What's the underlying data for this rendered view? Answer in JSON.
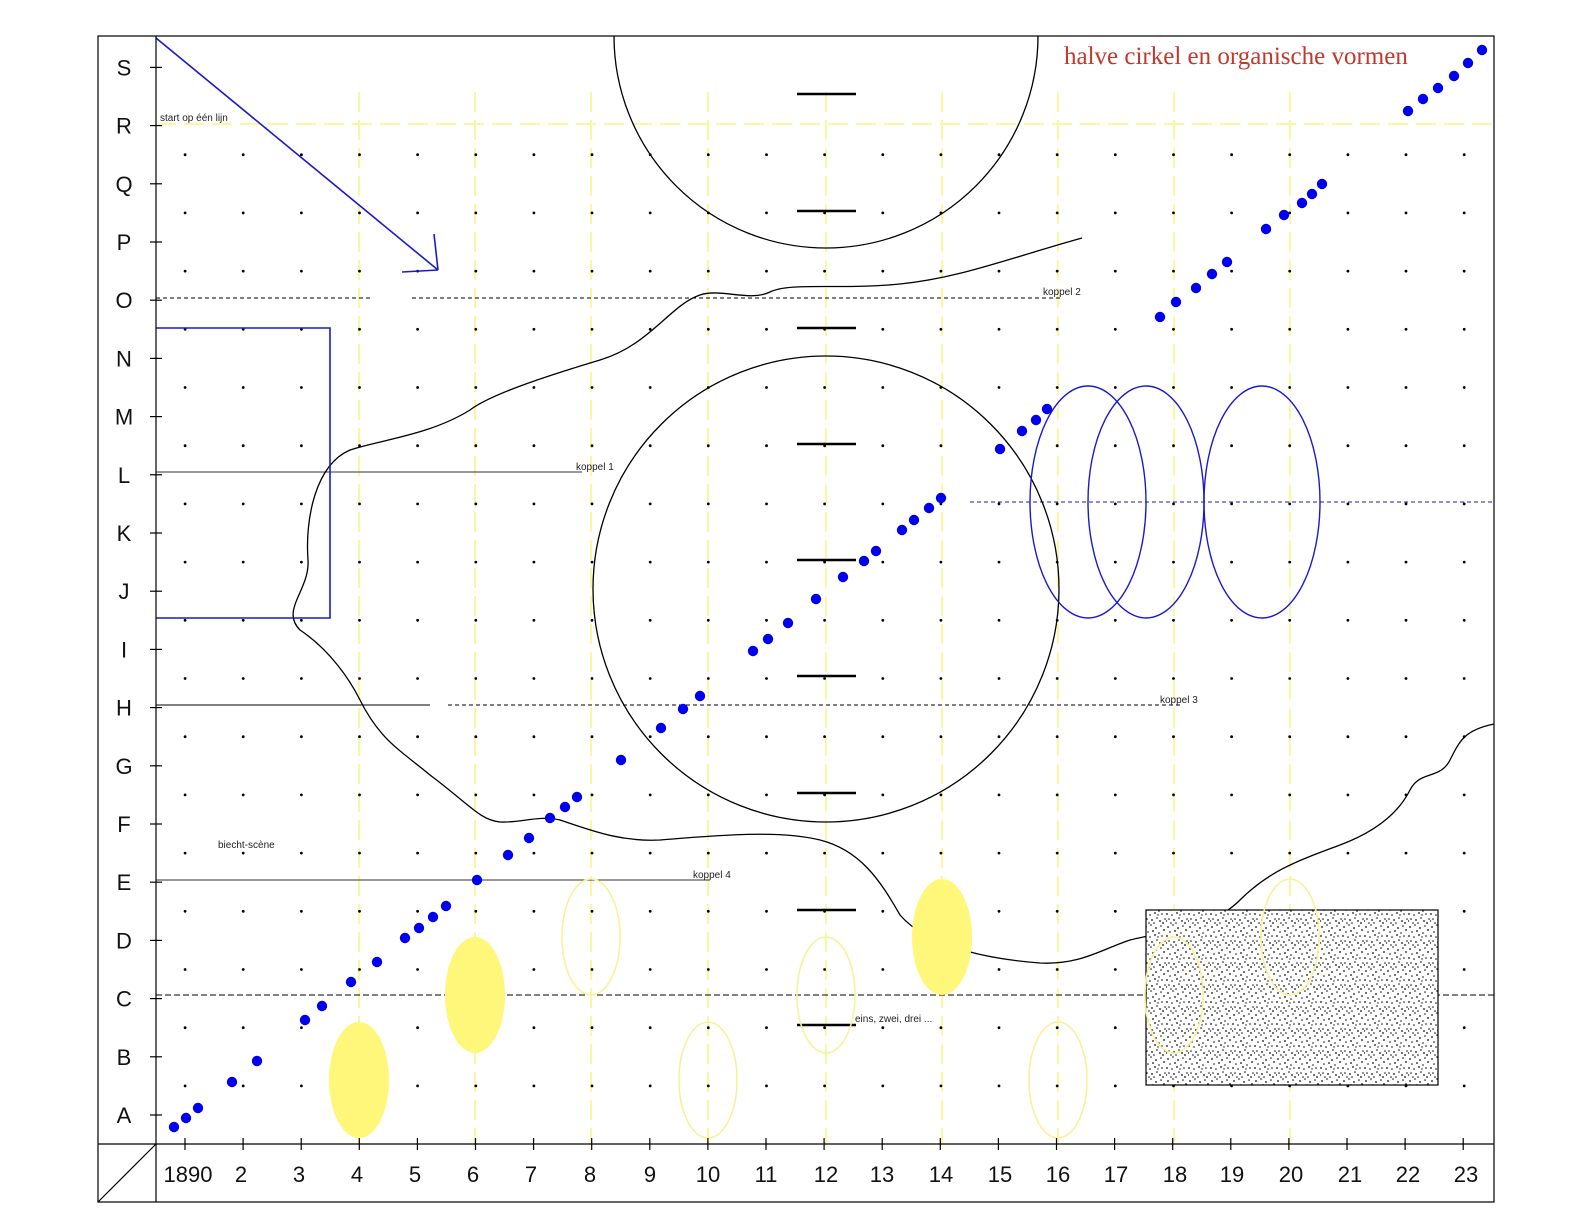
{
  "title": "halve cirkel en organische vormen",
  "rows": [
    "A",
    "B",
    "C",
    "D",
    "E",
    "F",
    "G",
    "H",
    "I",
    "J",
    "K",
    "L",
    "M",
    "N",
    "O",
    "P",
    "Q",
    "R",
    "S"
  ],
  "columns": [
    "1890",
    "2",
    "3",
    "4",
    "5",
    "6",
    "7",
    "8",
    "9",
    "10",
    "11",
    "12",
    "13",
    "14",
    "15",
    "16",
    "17",
    "18",
    "19",
    "20",
    "21",
    "22",
    "23"
  ],
  "annotations": {
    "start": "start op één lijn",
    "koppel1": "koppel 1",
    "koppel2": "koppel 2",
    "koppel3": "koppel 3",
    "koppel4": "koppel 4",
    "biecht": "biecht-scène",
    "eins": "eins, zwei, drei ..."
  },
  "colors": {
    "title": "#c0392b",
    "path_blue": "#0000ee",
    "shape_blue": "#1a1acc",
    "yellow_fill": "#fff77a",
    "yellow_stroke": "#f7f29a",
    "guide_yellow": "#f9f7a0",
    "black": "#000000"
  },
  "icons": {
    "corner": "diagonal-slash-icon"
  }
}
